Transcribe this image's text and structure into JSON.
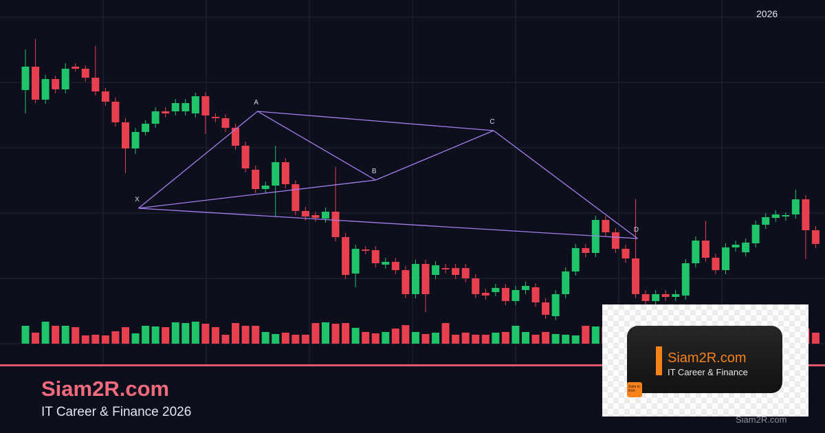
{
  "chart_data": {
    "type": "candlestick",
    "up_color": "#1fc46a",
    "down_color": "#e8404f",
    "pattern_color": "#a57ef0",
    "ylim": [
      0,
      530
    ],
    "vlim": [
      0,
      100
    ],
    "ohlc": [
      [
        399,
        458,
        365,
        433
      ],
      [
        433,
        473,
        380,
        385
      ],
      [
        385,
        421,
        379,
        415
      ],
      [
        415,
        420,
        394,
        400
      ],
      [
        400,
        438,
        394,
        430
      ],
      [
        433,
        438,
        426,
        430
      ],
      [
        430,
        435,
        411,
        417
      ],
      [
        417,
        463,
        391,
        397
      ],
      [
        397,
        402,
        376,
        382
      ],
      [
        382,
        388,
        346,
        352
      ],
      [
        352,
        358,
        278,
        314
      ],
      [
        314,
        344,
        306,
        338
      ],
      [
        338,
        355,
        333,
        350
      ],
      [
        350,
        374,
        344,
        368
      ],
      [
        368,
        374,
        359,
        365
      ],
      [
        368,
        386,
        362,
        380
      ],
      [
        368,
        386,
        362,
        380
      ],
      [
        365,
        395,
        359,
        390
      ],
      [
        390,
        396,
        335,
        362
      ],
      [
        360,
        365,
        352,
        358
      ],
      [
        358,
        364,
        338,
        344
      ],
      [
        344,
        350,
        312,
        318
      ],
      [
        318,
        324,
        279,
        285
      ],
      [
        283,
        289,
        249,
        255
      ],
      [
        255,
        266,
        249,
        260
      ],
      [
        260,
        318,
        214,
        294
      ],
      [
        294,
        300,
        256,
        262
      ],
      [
        262,
        268,
        217,
        223
      ],
      [
        223,
        229,
        209,
        215
      ],
      [
        217,
        222,
        207,
        213
      ],
      [
        212,
        228,
        206,
        222
      ],
      [
        222,
        287,
        179,
        185
      ],
      [
        185,
        191,
        124,
        130
      ],
      [
        132,
        174,
        112,
        168
      ],
      [
        167,
        172,
        160,
        165
      ],
      [
        166,
        172,
        141,
        147
      ],
      [
        145,
        155,
        139,
        149
      ],
      [
        149,
        155,
        131,
        137
      ],
      [
        137,
        143,
        96,
        102
      ],
      [
        102,
        152,
        96,
        146
      ],
      [
        146,
        152,
        76,
        102
      ],
      [
        130,
        150,
        124,
        144
      ],
      [
        140,
        146,
        132,
        138
      ],
      [
        140,
        146,
        124,
        130
      ],
      [
        140,
        146,
        119,
        125
      ],
      [
        125,
        131,
        96,
        102
      ],
      [
        104,
        110,
        94,
        100
      ],
      [
        105,
        117,
        99,
        111
      ],
      [
        111,
        117,
        86,
        92
      ],
      [
        92,
        114,
        86,
        108
      ],
      [
        108,
        120,
        102,
        114
      ],
      [
        112,
        118,
        84,
        90
      ],
      [
        90,
        96,
        66,
        72
      ],
      [
        70,
        108,
        64,
        102
      ],
      [
        102,
        141,
        96,
        135
      ],
      [
        135,
        175,
        129,
        169
      ],
      [
        169,
        175,
        156,
        162
      ],
      [
        162,
        216,
        156,
        210
      ],
      [
        210,
        216,
        186,
        192
      ],
      [
        192,
        198,
        162,
        168
      ],
      [
        168,
        174,
        148,
        154
      ],
      [
        154,
        240,
        96,
        102
      ],
      [
        102,
        108,
        86,
        92
      ],
      [
        92,
        108,
        86,
        102
      ],
      [
        102,
        108,
        92,
        98
      ],
      [
        98,
        108,
        92,
        102
      ],
      [
        100,
        153,
        94,
        147
      ],
      [
        147,
        186,
        141,
        180
      ],
      [
        180,
        208,
        149,
        155
      ],
      [
        155,
        161,
        131,
        137
      ],
      [
        137,
        176,
        131,
        170
      ],
      [
        170,
        180,
        164,
        174
      ],
      [
        163,
        183,
        157,
        177
      ],
      [
        176,
        209,
        170,
        203
      ],
      [
        203,
        220,
        197,
        214
      ],
      [
        213,
        224,
        207,
        218
      ],
      [
        215,
        221,
        209,
        217
      ],
      [
        218,
        254,
        212,
        240
      ],
      [
        240,
        246,
        153,
        195
      ],
      [
        195,
        201,
        169,
        175
      ]
    ],
    "volumes": [
      26,
      16,
      32,
      26,
      26,
      24,
      12,
      13,
      12,
      18,
      24,
      15,
      26,
      25,
      24,
      31,
      30,
      32,
      29,
      24,
      13,
      30,
      26,
      26,
      17,
      14,
      16,
      13,
      13,
      30,
      31,
      29,
      30,
      23,
      17,
      15,
      17,
      22,
      27,
      17,
      14,
      16,
      30,
      13,
      16,
      13,
      13,
      16,
      17,
      26,
      17,
      13,
      17,
      14,
      13,
      12,
      26,
      25,
      24,
      17,
      18,
      15,
      24,
      14,
      10,
      12,
      20,
      18,
      22,
      16,
      14,
      19,
      21,
      17,
      15,
      13,
      18,
      24,
      22,
      16
    ],
    "pattern": [
      {
        "label": "X",
        "x": 11.3,
        "y": 227
      },
      {
        "label": "A",
        "x": 23.2,
        "y": 368
      },
      {
        "label": "B",
        "x": 35,
        "y": 268
      },
      {
        "label": "C",
        "x": 46.8,
        "y": 340
      },
      {
        "label": "D",
        "x": 61.2,
        "y": 183
      }
    ],
    "year_label": "2026"
  },
  "branding": {
    "site": "Siam2R.com",
    "tagline": "IT Career & Finance 2026",
    "card_site": "Siam2R.com",
    "card_tagline": "IT Career & Finance",
    "badge": "Siam to Rich",
    "watermark": "Siam2R.com"
  }
}
